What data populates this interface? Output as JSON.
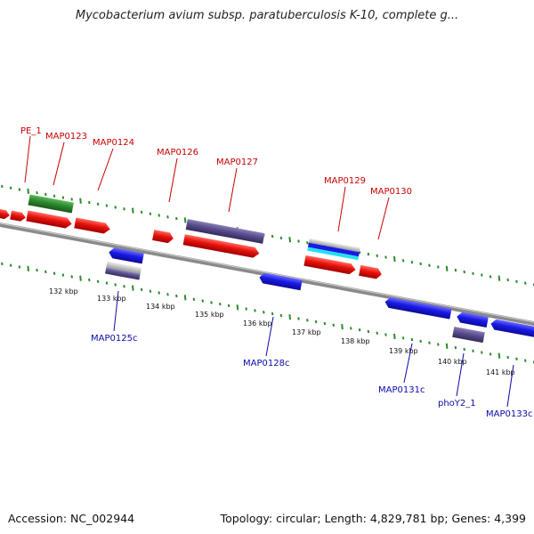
{
  "title": "Mycobacterium avium subsp. paratuberculosis K-10, complete g...",
  "footer": {
    "accession": "Accession: NC_002944",
    "summary": "Topology: circular; Length: 4,829,781 bp; Genes: 4,399"
  },
  "colors": {
    "cds_forward": "#e8120d",
    "cds_reverse": "#1a1ae6",
    "gene": "#5a4d8c",
    "rna": "#2d8a2d",
    "tick": "#2d8a2d",
    "backbone": "#7a7a7a",
    "label_forward": "#c80000",
    "label_reverse": "#0a0aaa"
  },
  "scale_labels": [
    "132 kbp",
    "133 kbp",
    "134 kbp",
    "135 kbp",
    "136 kbp",
    "137 kbp",
    "138 kbp",
    "139 kbp",
    "140 kbp",
    "141 kbp"
  ],
  "forward_labels": [
    "PE_1",
    "MAP0123",
    "MAP0124",
    "MAP0126",
    "MAP0127",
    "MAP0129",
    "MAP0130"
  ],
  "reverse_labels": [
    "MAP0125c",
    "MAP0128c",
    "MAP0131c",
    "phoY2_1",
    "MAP0133c"
  ]
}
